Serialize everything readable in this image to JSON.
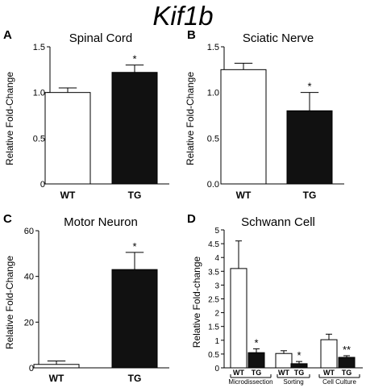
{
  "figure": {
    "title": "Kif1b"
  },
  "chart_data": [
    {
      "panel_label": "A",
      "type": "bar",
      "title": "Spinal Cord",
      "ylabel": "Relative Fold-Change",
      "ylim": [
        0,
        1.5
      ],
      "yticks": [
        0,
        0.5,
        1.0,
        1.5
      ],
      "ytick_labels": [
        "0",
        "0.5",
        "1.0",
        "1.5"
      ],
      "categories": [
        "WT",
        "TG"
      ],
      "values": [
        1.0,
        1.22
      ],
      "errors": [
        0.05,
        0.08
      ],
      "fills": [
        "#ffffff",
        "#111111"
      ],
      "markers": [
        "",
        "*"
      ]
    },
    {
      "panel_label": "B",
      "type": "bar",
      "title": "Sciatic Nerve",
      "ylabel": "Relative Fold-Change",
      "ylim": [
        0,
        1.5
      ],
      "yticks": [
        0,
        0.5,
        1.0,
        1.5
      ],
      "ytick_labels": [
        "0.0",
        "0.5",
        "1.0",
        "1.5"
      ],
      "categories": [
        "WT",
        "TG"
      ],
      "values": [
        1.25,
        0.8
      ],
      "errors": [
        0.07,
        0.2
      ],
      "fills": [
        "#ffffff",
        "#111111"
      ],
      "markers": [
        "",
        "*"
      ]
    },
    {
      "panel_label": "C",
      "type": "bar",
      "title": "Motor Neuron",
      "ylabel": "Relative Fold-Change",
      "ylim": [
        0,
        60
      ],
      "yticks": [
        0,
        20,
        40,
        60
      ],
      "ytick_labels": [
        "0",
        "20",
        "40",
        "60"
      ],
      "categories": [
        "WT",
        "TG"
      ],
      "values": [
        1.5,
        43
      ],
      "errors": [
        1.5,
        7.5
      ],
      "fills": [
        "#ffffff",
        "#111111"
      ],
      "markers": [
        "",
        "*"
      ]
    },
    {
      "panel_label": "D",
      "type": "bar",
      "title": "Schwann Cell",
      "ylabel": "Relative Fold-change",
      "ylim": [
        0,
        5
      ],
      "yticks": [
        0,
        0.5,
        1,
        1.5,
        2,
        2.5,
        3,
        3.5,
        4,
        4.5,
        5
      ],
      "ytick_labels": [
        "0",
        "0.5",
        "1",
        "1.5",
        "2",
        "2.5",
        "3",
        "3.5",
        "4",
        "4.5",
        "5"
      ],
      "groups": [
        "Microdissection",
        "Sorting",
        "Cell Culture"
      ],
      "categories": [
        "WT",
        "TG",
        "WT",
        "TG",
        "WT",
        "TG"
      ],
      "values": [
        3.6,
        0.55,
        0.52,
        0.15,
        1.02,
        0.38
      ],
      "errors": [
        1.0,
        0.14,
        0.1,
        0.08,
        0.2,
        0.06
      ],
      "fills": [
        "#ffffff",
        "#111111",
        "#ffffff",
        "#111111",
        "#ffffff",
        "#111111"
      ],
      "markers": [
        "",
        "*",
        "",
        "*",
        "",
        "**"
      ]
    }
  ]
}
